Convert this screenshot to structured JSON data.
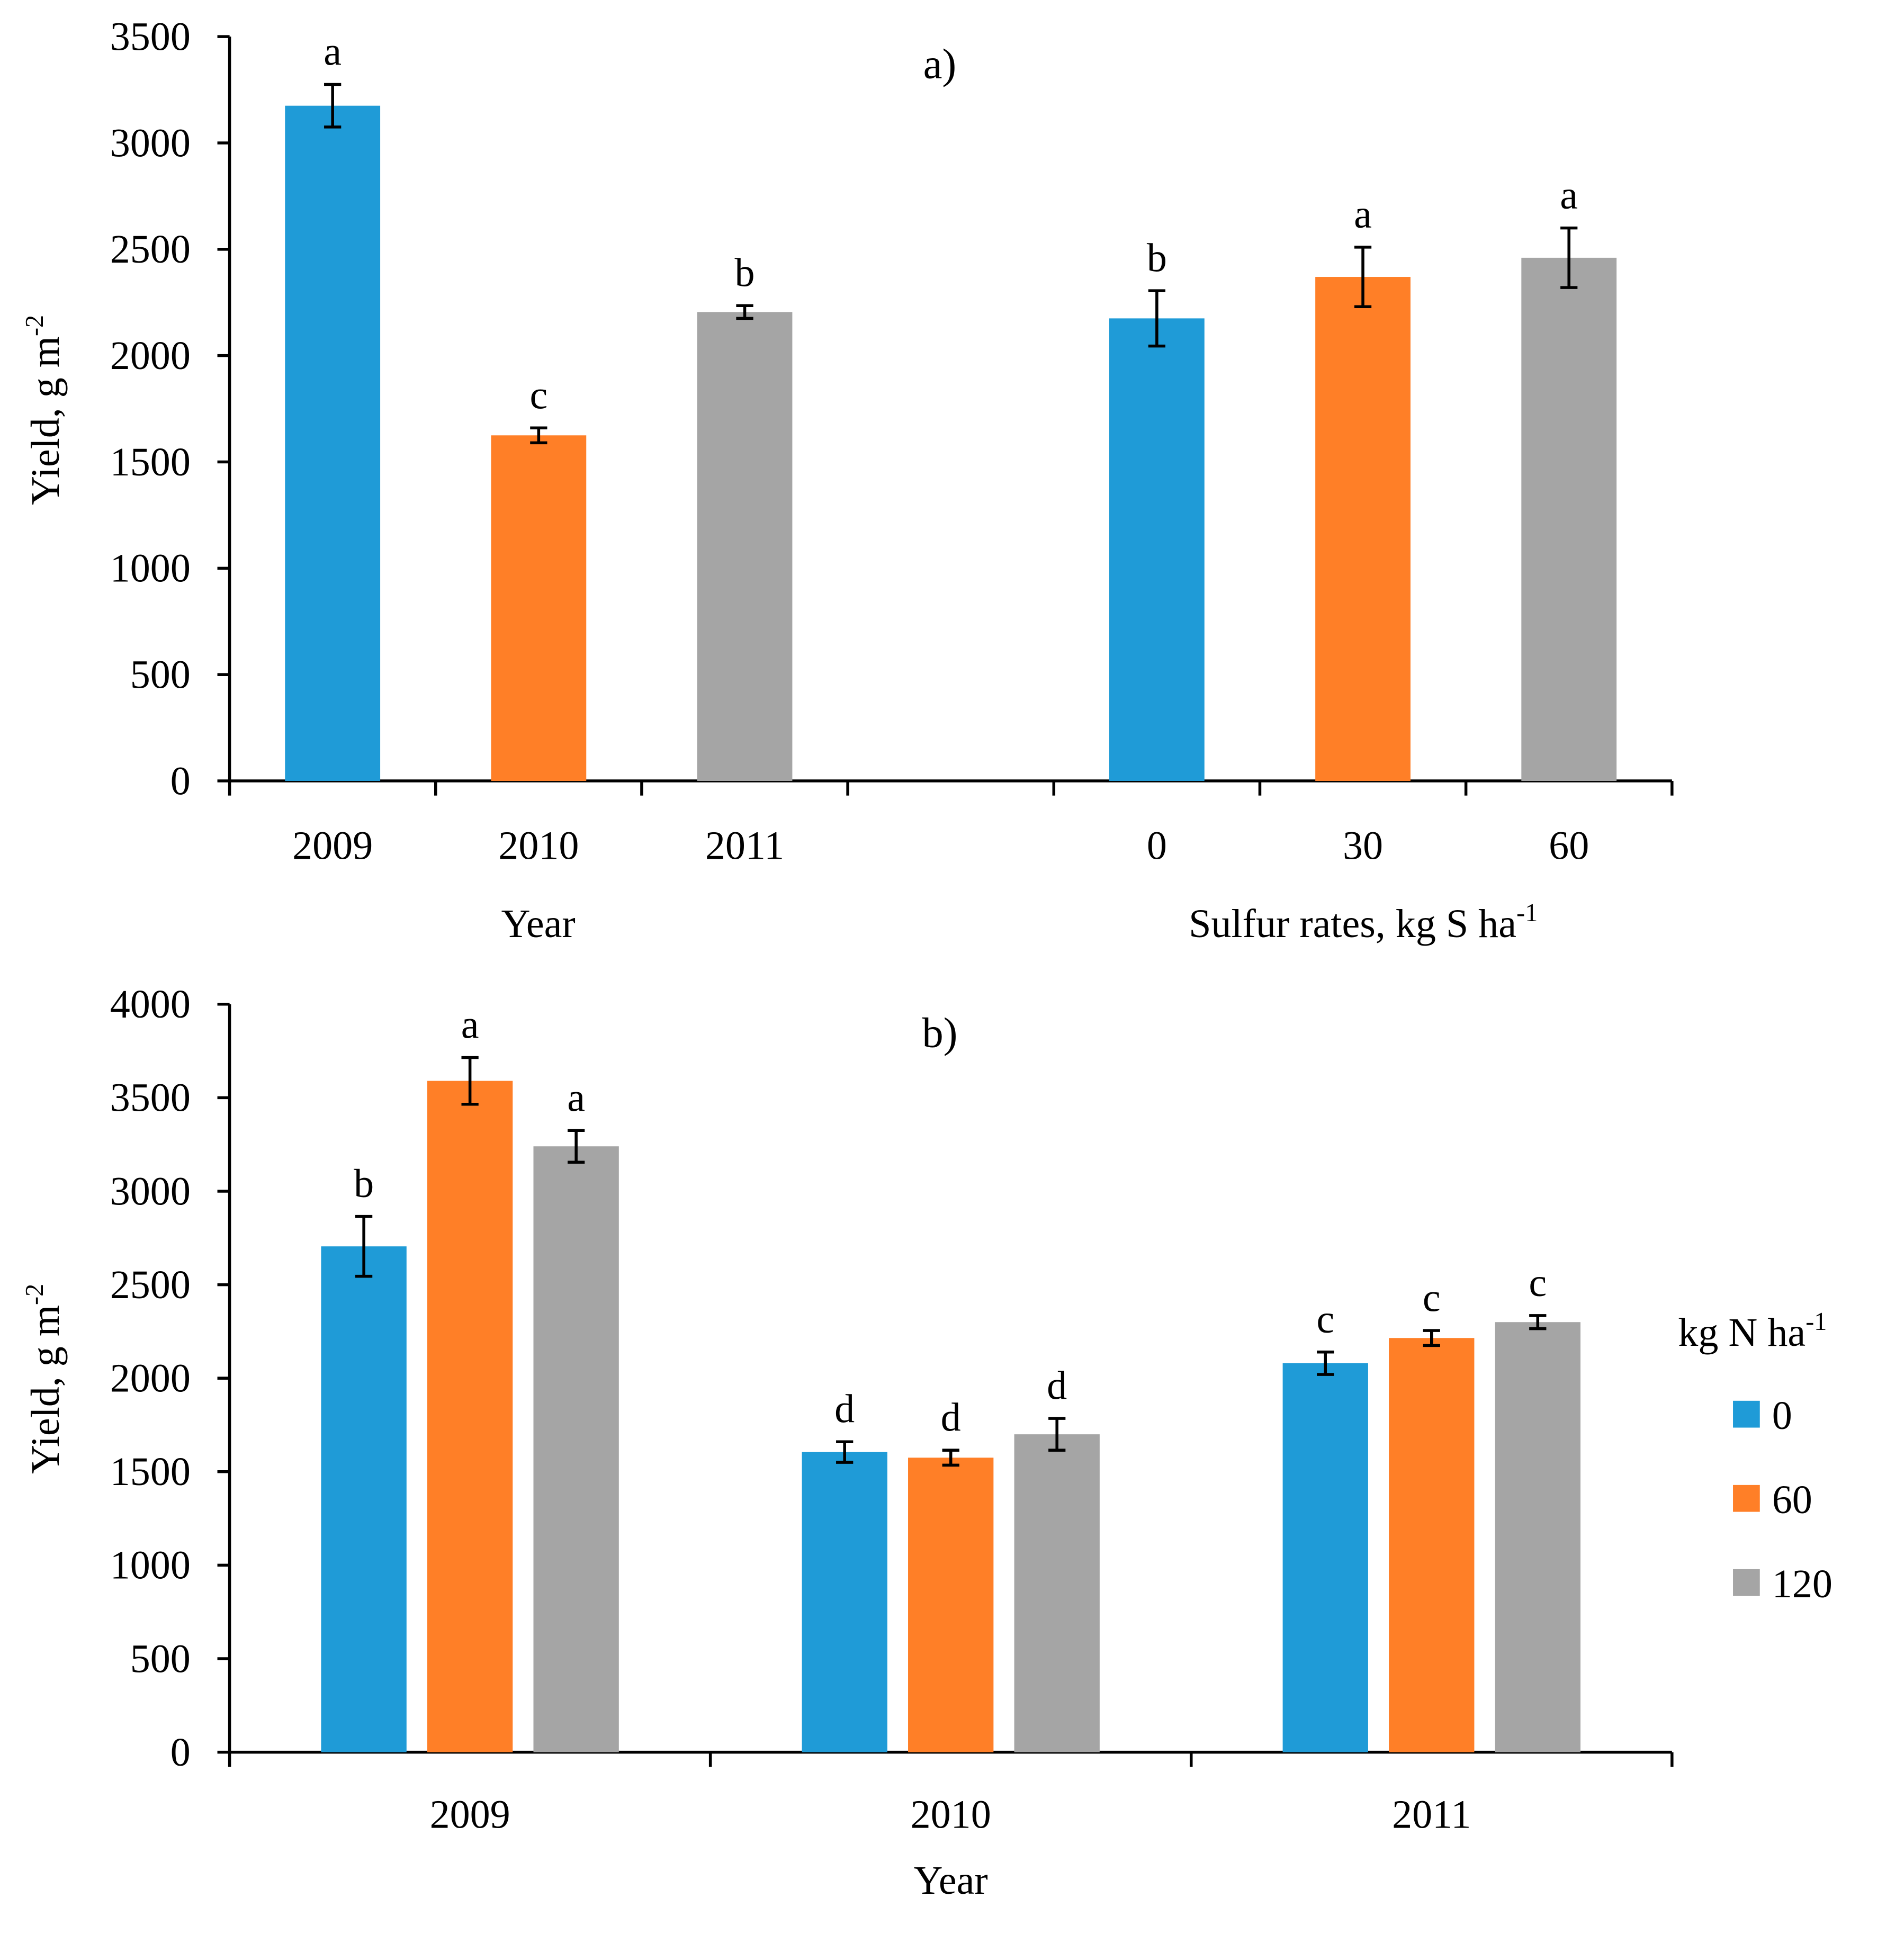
{
  "chart_data": [
    {
      "type": "bar",
      "title": "a)",
      "ylabel": "Yield, g m",
      "ylabel_sup": "-2",
      "ylim": [
        0,
        3500
      ],
      "yticks": [
        0,
        500,
        1000,
        1500,
        2000,
        2500,
        3000,
        3500
      ],
      "grid": false,
      "groups": [
        {
          "xlabel": "Year",
          "categories": [
            "2009",
            "2010",
            "2011"
          ],
          "values": [
            3175,
            1625,
            2205
          ],
          "errors": [
            100,
            35,
            30
          ],
          "letters": [
            "a",
            "c",
            "b"
          ],
          "colors": [
            "#1F9BD7",
            "#FF7F27",
            "#A5A5A5"
          ]
        },
        {
          "xlabel": "Sulfur rates, kg S ha",
          "xlabel_sup": "-1",
          "categories": [
            "0",
            "30",
            "60"
          ],
          "values": [
            2175,
            2370,
            2460
          ],
          "errors": [
            130,
            140,
            140
          ],
          "letters": [
            "b",
            "a",
            "a"
          ],
          "colors": [
            "#1F9BD7",
            "#FF7F27",
            "#A5A5A5"
          ]
        }
      ]
    },
    {
      "type": "bar",
      "title": "b)",
      "xlabel": "Year",
      "ylabel": "Yield, g m",
      "ylabel_sup": "-2",
      "ylim": [
        0,
        4000
      ],
      "yticks": [
        0,
        500,
        1000,
        1500,
        2000,
        2500,
        3000,
        3500,
        4000
      ],
      "grid": false,
      "categories": [
        "2009",
        "2010",
        "2011"
      ],
      "legend": {
        "title": "kg N ha",
        "title_sup": "-1",
        "position": "right"
      },
      "series": [
        {
          "name": "0",
          "color": "#1F9BD7",
          "values": [
            2705,
            1605,
            2080
          ],
          "errors": [
            160,
            55,
            60
          ],
          "letters": [
            "b",
            "d",
            "c"
          ]
        },
        {
          "name": "60",
          "color": "#FF7F27",
          "values": [
            3590,
            1575,
            2215
          ],
          "errors": [
            125,
            40,
            40
          ],
          "letters": [
            "a",
            "d",
            "c"
          ]
        },
        {
          "name": "120",
          "color": "#A5A5A5",
          "values": [
            3240,
            1700,
            2300
          ],
          "errors": [
            85,
            85,
            35
          ],
          "letters": [
            "a",
            "d",
            "c"
          ]
        }
      ]
    }
  ]
}
